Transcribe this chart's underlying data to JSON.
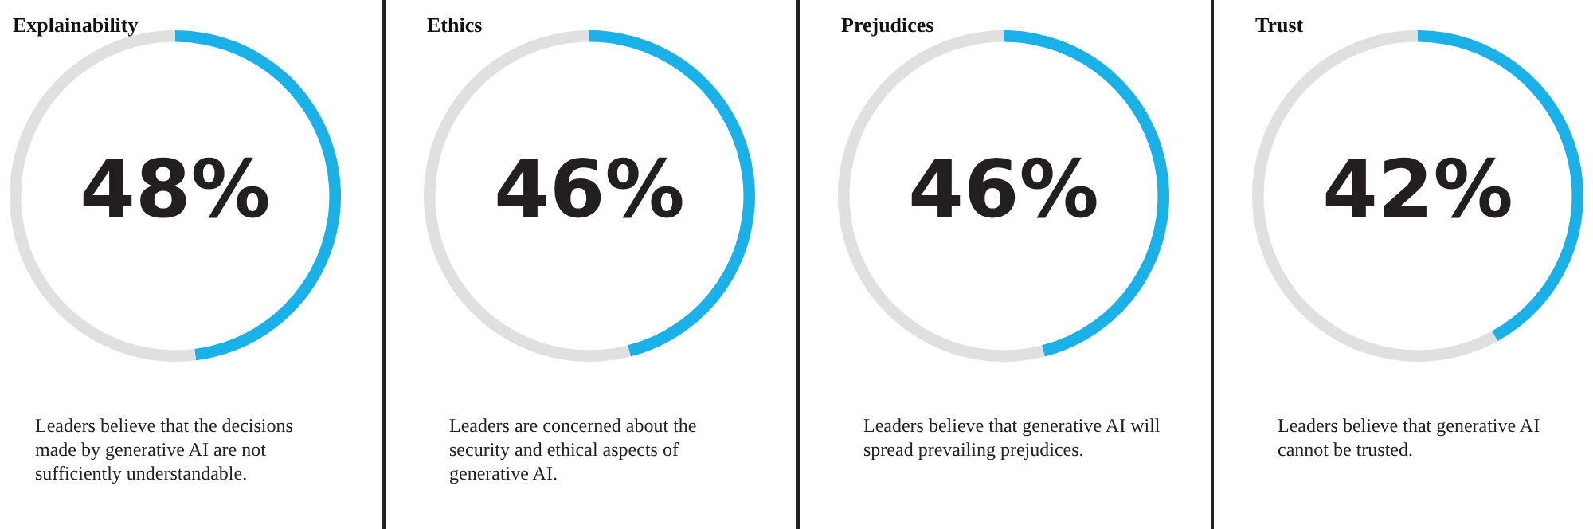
{
  "chart_data": [
    {
      "type": "donut",
      "title": "Explainability",
      "categories": [
        null,
        null
      ],
      "values": [
        48,
        52
      ],
      "colors": [
        "#1ab0e8",
        "#e0e0e0"
      ],
      "value_labels": [
        "48%",
        null
      ],
      "annotations": [
        "Leaders believe that the decisions made by generative AI are not sufficiently understandable."
      ],
      "legend": false
    },
    {
      "type": "donut",
      "title": "Ethics",
      "categories": [
        null,
        null
      ],
      "values": [
        46,
        54
      ],
      "colors": [
        "#1ab0e8",
        "#e0e0e0"
      ],
      "value_labels": [
        "46%",
        null
      ],
      "annotations": [
        "Leaders are concerned about the security and ethical aspects of generative AI."
      ],
      "legend": false
    },
    {
      "type": "donut",
      "title": "Prejudices",
      "categories": [
        null,
        null
      ],
      "values": [
        46,
        54
      ],
      "colors": [
        "#1ab0e8",
        "#e0e0e0"
      ],
      "value_labels": [
        "46%",
        null
      ],
      "annotations": [
        "Leaders believe that generative AI will spread prevailing prejudices."
      ],
      "legend": false
    },
    {
      "type": "donut",
      "title": "Trust",
      "categories": [
        null,
        null
      ],
      "values": [
        42,
        58
      ],
      "colors": [
        "#1ab0e8",
        "#e0e0e0"
      ],
      "value_labels": [
        "42%",
        null
      ],
      "annotations": [
        "Leaders believe that generative AI cannot be trusted."
      ],
      "legend": false
    }
  ]
}
